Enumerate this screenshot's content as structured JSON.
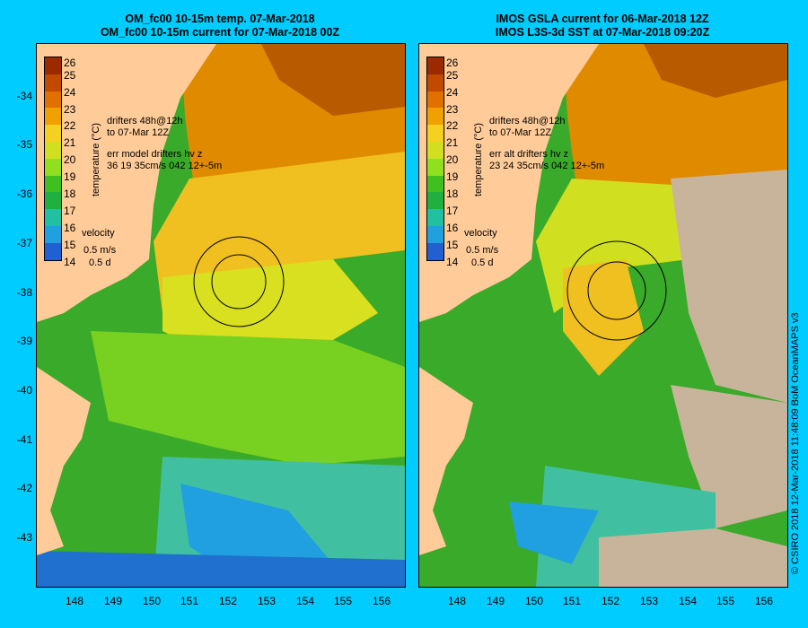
{
  "left_panel": {
    "title_line1": "OM_fc00 10-15m temp. 07-Mar-2018",
    "title_line2": "OM_fc00 10-15m current for 07-Mar-2018 00Z",
    "drifters_label": "drifters 48h@12h",
    "drifters_date": "to 07-Mar 12Z",
    "err_label": "err model drifters hv z",
    "err_values": "36 19 35cm/s 042 12+-5m",
    "velocity_label": "velocity",
    "velocity_scale": "0.5 m/s",
    "velocity_time": "0.5 d"
  },
  "right_panel": {
    "title_line1": "IMOS GSLA current for 06-Mar-2018 12Z",
    "title_line2": "IMOS L3S-3d SST at 07-Mar-2018 09:20Z",
    "drifters_label": "drifters 48h@12h",
    "drifters_date": "to 07-Mar 12Z",
    "err_label": "err alt drifters hv z",
    "err_values": "23 24 35cm/s 042 12+-5m",
    "velocity_label": "velocity",
    "velocity_scale": "0.5 m/s",
    "velocity_time": "0.5 d"
  },
  "colorbar": {
    "label": "temperature (°C)",
    "ticks": [
      "26",
      "25",
      "24",
      "23",
      "22",
      "21",
      "20",
      "19",
      "18",
      "17",
      "16",
      "15",
      "14"
    ],
    "colors": [
      "#9b2a00",
      "#c24a00",
      "#e07000",
      "#f0a000",
      "#f5d020",
      "#d0e020",
      "#90e020",
      "#40c020",
      "#20b040",
      "#20c0a0",
      "#20a0e0",
      "#2060d0",
      "#1830a0"
    ]
  },
  "y_axis_ticks": [
    "-34",
    "-35",
    "-36",
    "-37",
    "-38",
    "-39",
    "-40",
    "-41",
    "-42",
    "-43"
  ],
  "x_axis_ticks": [
    "148",
    "149",
    "150",
    "151",
    "152",
    "153",
    "154",
    "155",
    "156"
  ],
  "copyright": "© CSIRO 2018   12-Mar-2018 11:48:09 BoM OceanMAPS v3",
  "colors": {
    "background": "#00ccff",
    "land": "#ffcc99",
    "cloud_mask": "#c8b49a",
    "drifter": "#ff00ff"
  }
}
